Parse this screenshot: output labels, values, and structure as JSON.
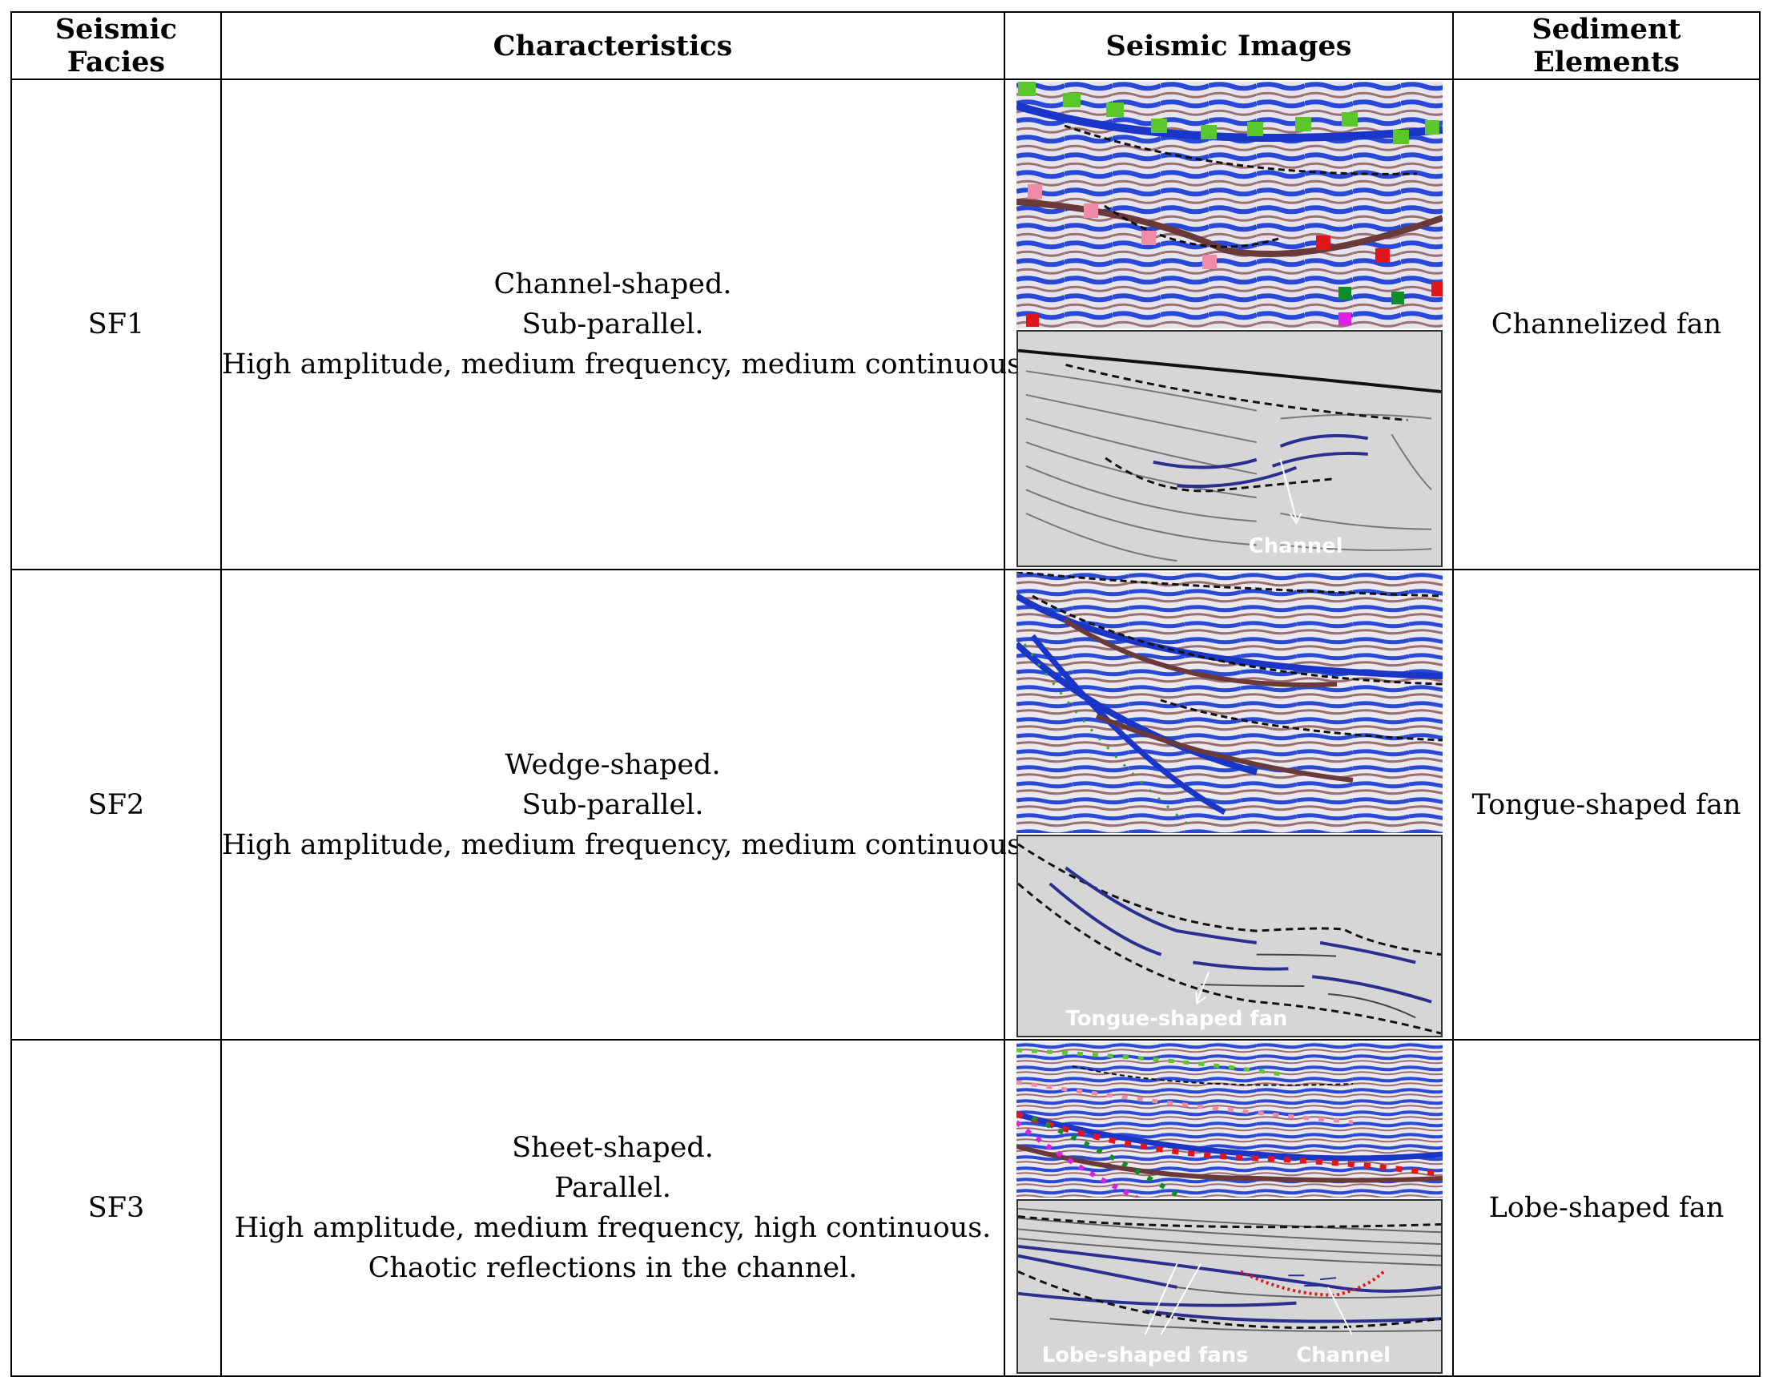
{
  "headers": {
    "facies": "Seismic Facies",
    "characteristics": "Characteristics",
    "images": "Seismic Images",
    "elements": "Sediment Elements"
  },
  "rows": [
    {
      "facies": "SF1",
      "characteristics": [
        "Channel-shaped.",
        "Sub-parallel.",
        "High amplitude, medium frequency, medium continuous."
      ],
      "element": "Channelized fan",
      "sketch_labels": [
        "Channel"
      ]
    },
    {
      "facies": "SF2",
      "characteristics": [
        "Wedge-shaped.",
        "Sub-parallel.",
        "High amplitude, medium frequency, medium continuous."
      ],
      "element": "Tongue-shaped fan",
      "sketch_labels": [
        "Tongue-shaped fan"
      ]
    },
    {
      "facies": "SF3",
      "characteristics": [
        "Sheet-shaped.",
        "Parallel.",
        "High amplitude, medium frequency, high continuous.",
        "Chaotic reflections in the channel."
      ],
      "element": "Lobe-shaped fan",
      "sketch_labels": [
        "Lobe-shaped fans",
        "Channel"
      ]
    }
  ],
  "colors": {
    "seismic_positive": "#1f3fd6",
    "seismic_negative": "#8a5a5a",
    "sketch_bg": "#d6d6d6",
    "sketch_line_blue": "#2a2f8f",
    "marker_green": "#5cc72a",
    "marker_red": "#e0161b",
    "marker_pink": "#f08aa6"
  }
}
